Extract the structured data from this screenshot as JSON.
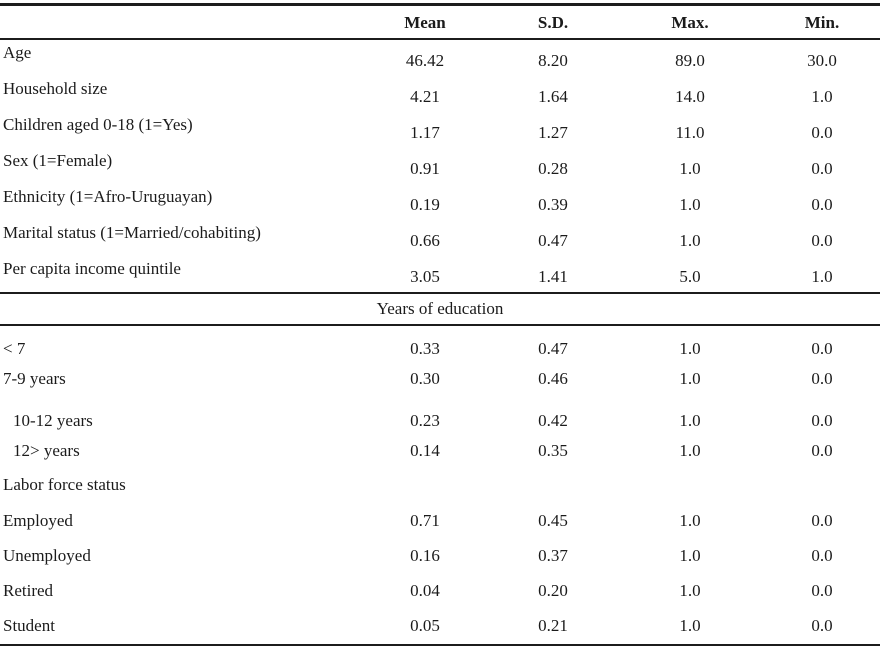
{
  "table": {
    "headers": [
      "Mean",
      "S.D.",
      "Max.",
      "Min."
    ],
    "sections": [
      {
        "kind": "rows",
        "style": "offset",
        "rows": [
          {
            "label": "Age",
            "values": [
              "46.42",
              "8.20",
              "89.0",
              "30.0"
            ]
          },
          {
            "label": "Household size",
            "values": [
              "4.21",
              "1.64",
              "14.0",
              "1.0"
            ]
          },
          {
            "label": "Children aged 0-18 (1=Yes)",
            "values": [
              "1.17",
              "1.27",
              "11.0",
              "0.0"
            ]
          },
          {
            "label": "Sex (1=Female)",
            "values": [
              "0.91",
              "0.28",
              "1.0",
              "0.0"
            ]
          },
          {
            "label": "Ethnicity (1=Afro-Uruguayan)",
            "values": [
              "0.19",
              "0.39",
              "1.0",
              "0.0"
            ]
          },
          {
            "label": "Marital status (1=Married/cohabiting)",
            "values": [
              "0.66",
              "0.47",
              "1.0",
              "0.0"
            ]
          },
          {
            "label": "Per capita income quintile",
            "values": [
              "3.05",
              "1.41",
              "5.0",
              "1.0"
            ]
          }
        ]
      },
      {
        "kind": "centered-subheader",
        "label": "Years of education"
      },
      {
        "kind": "rows",
        "style": "education",
        "rows": [
          {
            "label": "< 7",
            "values": [
              "0.33",
              "0.47",
              "1.0",
              "0.0"
            ]
          },
          {
            "label": "7-9 years",
            "values": [
              "0.30",
              "0.46",
              "1.0",
              "0.0"
            ]
          },
          {
            "label": "10-12 years",
            "indent": true,
            "values": [
              "0.23",
              "0.42",
              "1.0",
              "0.0"
            ]
          },
          {
            "label": "12> years",
            "indent": true,
            "values": [
              "0.14",
              "0.35",
              "1.0",
              "0.0"
            ]
          }
        ]
      },
      {
        "kind": "left-subheader",
        "label": "Labor force status"
      },
      {
        "kind": "rows",
        "style": "labor",
        "rows": [
          {
            "label": "Employed",
            "values": [
              "0.71",
              "0.45",
              "1.0",
              "0.0"
            ]
          },
          {
            "label": "Unemployed",
            "values": [
              "0.16",
              "0.37",
              "1.0",
              "0.0"
            ]
          },
          {
            "label": "Retired",
            "values": [
              "0.04",
              "0.20",
              "1.0",
              "0.0"
            ]
          },
          {
            "label": "Student",
            "values": [
              "0.05",
              "0.21",
              "1.0",
              "0.0"
            ]
          }
        ]
      }
    ]
  },
  "colors": {
    "text": "#1b1b1b",
    "rule": "#1c1c1c",
    "background": "#ffffff"
  }
}
